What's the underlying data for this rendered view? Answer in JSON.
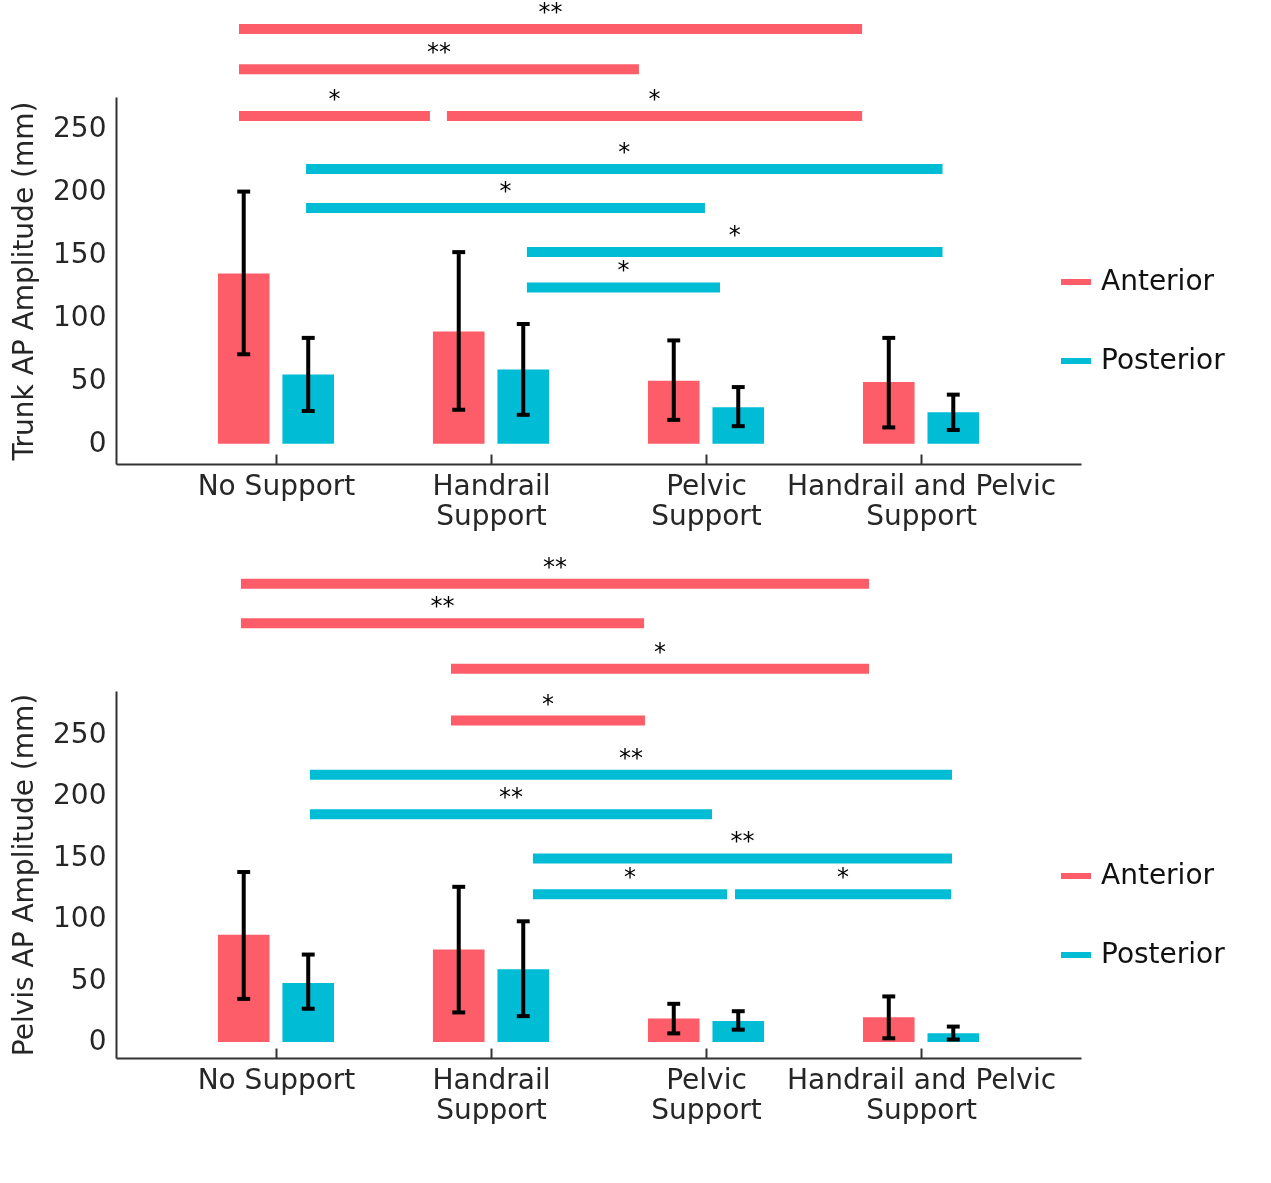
{
  "chart_data": [
    {
      "type": "bar",
      "categories": [
        "No Support",
        "Handrail\nSupport",
        "Pelvic\nSupport",
        "Handrail and Pelvic\nSupport"
      ],
      "ylabel": "Trunk AP Amplitude (mm)",
      "ylim": [
        -16,
        275
      ],
      "yticks": [
        0,
        50,
        100,
        150,
        200,
        250
      ],
      "grid": false,
      "legend": "right",
      "series": [
        {
          "name": "Anterior",
          "color": "#fd5d68",
          "values": [
            135,
            89,
            50,
            49
          ],
          "errors": [
            [
              71,
              200
            ],
            [
              27,
              152
            ],
            [
              19,
              82
            ],
            [
              13,
              84
            ]
          ]
        },
        {
          "name": "Posterior",
          "color": "#00bcd4",
          "values": [
            55,
            59,
            29,
            25
          ],
          "errors": [
            [
              26,
              84
            ],
            [
              23,
              95
            ],
            [
              14,
              45
            ],
            [
              11,
              39
            ]
          ]
        }
      ],
      "annotations": [
        "**",
        "**",
        "*",
        "*",
        "*",
        "*",
        "*",
        "*"
      ]
    },
    {
      "type": "bar",
      "categories": [
        "No Support",
        "Handrail\nSupport",
        "Pelvic\nSupport",
        "Handrail and Pelvic\nSupport"
      ],
      "ylabel": "Pelvis AP Amplitude (mm)",
      "ylim": [
        -13,
        285
      ],
      "yticks": [
        0,
        50,
        100,
        150,
        200,
        250
      ],
      "grid": false,
      "legend": "right",
      "series": [
        {
          "name": "Anterior",
          "color": "#fd5d68",
          "values": [
            87,
            75,
            19,
            20
          ],
          "errors": [
            [
              35,
              138
            ],
            [
              24,
              126
            ],
            [
              7,
              31
            ],
            [
              3,
              37
            ]
          ]
        },
        {
          "name": "Posterior",
          "color": "#00bcd4",
          "values": [
            48,
            59,
            17,
            7
          ],
          "errors": [
            [
              27,
              71
            ],
            [
              21,
              98
            ],
            [
              10,
              25
            ],
            [
              2,
              12.5
            ]
          ]
        }
      ],
      "annotations": [
        "**",
        "**",
        "*",
        "*",
        "**",
        "**",
        "**",
        "*",
        "*"
      ]
    }
  ]
}
